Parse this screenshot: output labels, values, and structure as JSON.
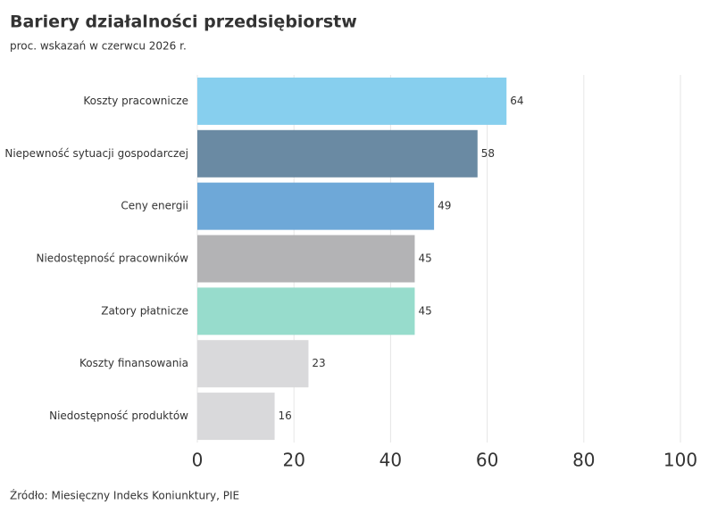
{
  "chart_data": {
    "type": "hbar",
    "title": "Bariery działalności przedsiębiorstw",
    "subtitle": "proc. wskazań w czerwcu 2026 r.",
    "source": "Źródło: Miesięczny Indeks Koniunktury, PIE",
    "categories": [
      "Koszty pracownicze",
      "Niepewność sytuacji gospodarczej",
      "Ceny energii",
      "Niedostępność pracowników",
      "Zatory płatnicze",
      "Koszty finansowania",
      "Niedostępność produktów"
    ],
    "values": [
      64,
      58,
      49,
      45,
      45,
      23,
      16
    ],
    "colors": [
      "#87cfee",
      "#6a8aa3",
      "#6ea8d8",
      "#b3b3b5",
      "#97dccc",
      "#d9d9db",
      "#d9d9db"
    ],
    "xlim": [
      0,
      100
    ],
    "xticks": [
      0,
      20,
      40,
      60,
      80,
      100
    ],
    "grid": true
  }
}
